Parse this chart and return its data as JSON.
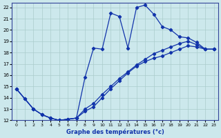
{
  "title": "Graphe des températures (°c)",
  "bg_color": "#cce8ec",
  "grid_color": "#aacccc",
  "line_color": "#1133aa",
  "xlim": [
    -0.5,
    23.5
  ],
  "ylim": [
    12,
    22.4
  ],
  "xticks": [
    0,
    1,
    2,
    3,
    4,
    5,
    6,
    7,
    8,
    9,
    10,
    11,
    12,
    13,
    14,
    15,
    16,
    17,
    18,
    19,
    20,
    21,
    22,
    23
  ],
  "yticks": [
    12,
    13,
    14,
    15,
    16,
    17,
    18,
    19,
    20,
    21,
    22
  ],
  "line1_x": [
    0,
    1,
    2,
    3,
    4,
    5,
    6,
    7,
    8,
    9,
    10,
    11,
    12,
    13,
    14,
    15,
    16,
    17,
    18,
    19,
    20,
    21,
    22,
    23
  ],
  "line1_y": [
    14.8,
    13.9,
    13.0,
    12.5,
    12.2,
    12.0,
    12.1,
    12.2,
    15.8,
    18.4,
    18.3,
    21.5,
    21.2,
    18.4,
    22.0,
    22.2,
    21.4,
    20.3,
    20.0,
    19.4,
    19.3,
    18.9,
    18.3,
    18.3
  ],
  "line2_x": [
    0,
    1,
    2,
    3,
    4,
    5,
    6,
    7,
    8,
    9,
    10,
    11,
    12,
    13,
    14,
    15,
    16,
    17,
    18,
    19,
    20,
    21,
    22,
    23
  ],
  "line2_y": [
    14.8,
    13.9,
    13.0,
    12.5,
    12.2,
    12.0,
    12.1,
    12.2,
    12.8,
    13.2,
    14.0,
    14.8,
    15.5,
    16.2,
    16.8,
    17.2,
    17.5,
    17.7,
    18.0,
    18.3,
    18.6,
    18.5,
    18.3,
    18.3
  ],
  "line3_x": [
    0,
    2,
    3,
    4,
    5,
    6,
    7,
    8,
    9,
    10,
    11,
    12,
    13,
    14,
    15,
    16,
    17,
    18,
    19,
    20,
    21,
    22,
    23
  ],
  "line3_y": [
    14.8,
    13.0,
    12.5,
    12.2,
    12.0,
    12.1,
    12.2,
    13.0,
    13.5,
    14.3,
    15.0,
    15.7,
    16.3,
    16.9,
    17.4,
    17.9,
    18.2,
    18.5,
    18.8,
    19.0,
    18.7,
    18.3,
    18.3
  ]
}
